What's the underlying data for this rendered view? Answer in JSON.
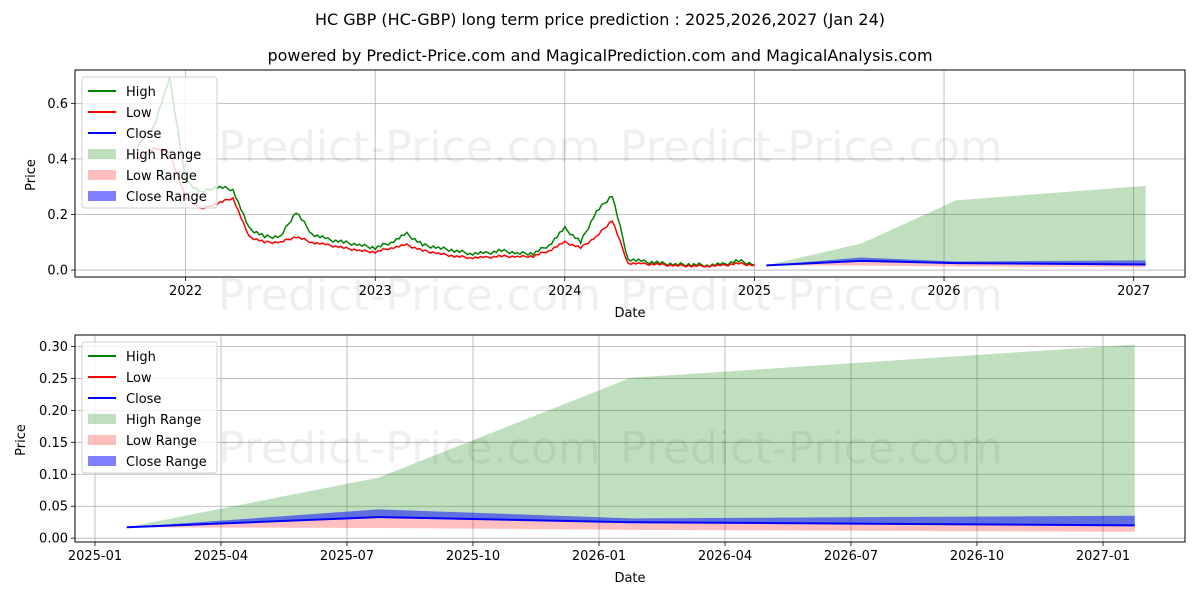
{
  "title": "HC GBP (HC-GBP) long term price prediction : 2025,2026,2027 (Jan 24)",
  "subtitle": "powered by Predict-Price.com and MagicalPrediction.com and MagicalAnalysis.com",
  "watermark": "Predict-Price.com",
  "colors": {
    "high": "#008000",
    "low": "#ff0000",
    "close": "#0000ff",
    "high_range": "#008000",
    "low_range": "#ff0000",
    "close_range": "#0000ff"
  },
  "legend": [
    "High",
    "Low",
    "Close",
    "High Range",
    "Low Range",
    "Close Range"
  ],
  "chart_data": [
    {
      "type": "line",
      "title": "HC GBP (HC-GBP) long term price prediction : 2025,2026,2027 (Jan 24)",
      "xlabel": "Date",
      "ylabel": "Price",
      "x_ticks": [
        "2022",
        "2023",
        "2024",
        "2025",
        "2026",
        "2027"
      ],
      "y_ticks": [
        "0.0",
        "0.2",
        "0.4",
        "0.6"
      ],
      "ylim": [
        -0.025,
        0.72
      ],
      "xlim": [
        "2021-06",
        "2027-04"
      ],
      "grid": true,
      "legend_position": "upper left",
      "history": {
        "x": [
          "2021-10",
          "2021-11",
          "2021-12",
          "2022-01",
          "2022-02",
          "2022-03",
          "2022-04",
          "2022-05",
          "2022-06",
          "2022-07",
          "2022-08",
          "2022-09",
          "2022-10",
          "2022-11",
          "2022-12",
          "2023-01",
          "2023-02",
          "2023-03",
          "2023-04",
          "2023-05",
          "2023-06",
          "2023-07",
          "2023-08",
          "2023-09",
          "2023-10",
          "2023-11",
          "2023-12",
          "2024-01",
          "2024-02",
          "2024-03",
          "2024-04",
          "2024-05",
          "2024-06",
          "2024-07",
          "2024-08",
          "2024-09",
          "2024-10",
          "2024-11",
          "2024-12",
          "2025-01"
        ],
        "high": [
          0.45,
          0.52,
          0.69,
          0.32,
          0.28,
          0.3,
          0.29,
          0.15,
          0.12,
          0.12,
          0.21,
          0.13,
          0.11,
          0.1,
          0.09,
          0.08,
          0.1,
          0.13,
          0.09,
          0.08,
          0.07,
          0.06,
          0.06,
          0.07,
          0.06,
          0.06,
          0.09,
          0.15,
          0.1,
          0.21,
          0.27,
          0.04,
          0.03,
          0.025,
          0.02,
          0.02,
          0.018,
          0.02,
          0.033,
          0.02
        ],
        "low": [
          0.4,
          0.44,
          0.42,
          0.26,
          0.22,
          0.24,
          0.26,
          0.12,
          0.1,
          0.1,
          0.12,
          0.1,
          0.09,
          0.08,
          0.07,
          0.065,
          0.08,
          0.09,
          0.07,
          0.06,
          0.05,
          0.045,
          0.045,
          0.05,
          0.048,
          0.05,
          0.07,
          0.1,
          0.08,
          0.12,
          0.18,
          0.025,
          0.022,
          0.02,
          0.016,
          0.015,
          0.015,
          0.016,
          0.024,
          0.017
        ]
      },
      "forecast": {
        "x": [
          "2025-01-24",
          "2025-07-24",
          "2026-01-24",
          "2027-01-24"
        ],
        "high_range_top": [
          0.017,
          0.095,
          0.251,
          0.303
        ],
        "close": [
          0.017,
          0.033,
          0.025,
          0.02
        ],
        "close_range_top": [
          0.017,
          0.045,
          0.031,
          0.035
        ],
        "low_range_bottom": [
          0.017,
          0.016,
          0.013,
          0.01
        ]
      }
    },
    {
      "type": "area",
      "xlabel": "Date",
      "ylabel": "Price",
      "x_ticks": [
        "2025-01",
        "2025-04",
        "2025-07",
        "2025-10",
        "2026-01",
        "2026-04",
        "2026-07",
        "2026-10",
        "2027-01"
      ],
      "y_ticks": [
        "0.00",
        "0.05",
        "0.10",
        "0.15",
        "0.20",
        "0.25",
        "0.30"
      ],
      "ylim": [
        -0.006,
        0.318
      ],
      "grid": true,
      "legend_position": "upper left",
      "forecast": {
        "x": [
          "2025-01-24",
          "2025-07-24",
          "2026-01-24",
          "2027-01-24"
        ],
        "high_range_top": [
          0.017,
          0.095,
          0.251,
          0.303
        ],
        "close": [
          0.017,
          0.033,
          0.025,
          0.02
        ],
        "close_range_top": [
          0.017,
          0.045,
          0.031,
          0.035
        ],
        "low_range_bottom": [
          0.017,
          0.016,
          0.013,
          0.01
        ]
      }
    }
  ]
}
